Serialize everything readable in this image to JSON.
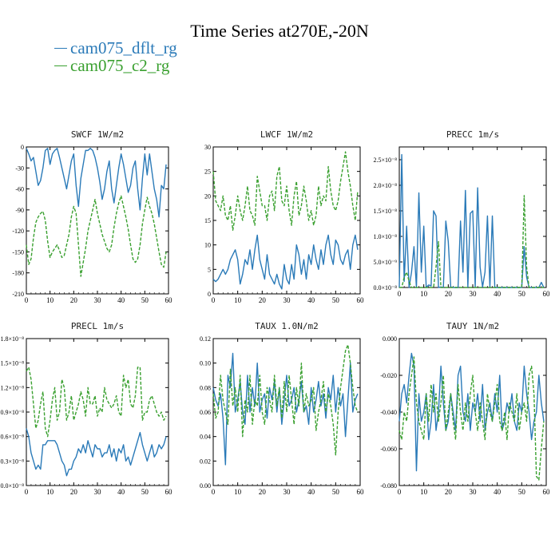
{
  "title": "Time Series at270E,-20N",
  "legend": [
    {
      "label": "cam075_dflt_rg",
      "color": "#2a7ab8"
    },
    {
      "label": "cam075_c2_rg",
      "color": "#3aa030"
    }
  ],
  "chart_data": [
    {
      "type": "line",
      "title": "SWCF   1W/m2",
      "xlim": [
        0,
        60
      ],
      "ylim": [
        -210,
        0
      ],
      "xticks": [
        0,
        10,
        20,
        30,
        40,
        50,
        60
      ],
      "yticks": [
        0,
        -30,
        -60,
        -90,
        -120,
        -150,
        -180,
        -210
      ],
      "ytick_labels": [
        "0",
        "-30",
        "-60",
        "-90",
        "-120",
        "-150",
        "-180",
        "-210"
      ],
      "series": [
        {
          "name": "cam075_dflt_rg",
          "values": [
            -2,
            -10,
            -20,
            -15,
            -35,
            -55,
            -48,
            -30,
            -5,
            -2,
            -25,
            -10,
            -5,
            -2,
            -15,
            -30,
            -45,
            -60,
            -40,
            -20,
            -10,
            -55,
            -85,
            -45,
            -25,
            -5,
            -5,
            -2,
            -5,
            -15,
            -30,
            -50,
            -75,
            -60,
            -35,
            -20,
            -60,
            -80,
            -55,
            -30,
            -10,
            -25,
            -45,
            -65,
            -55,
            -30,
            -20,
            -60,
            -90,
            -45,
            -10,
            -40,
            -10,
            -35,
            -60,
            -75,
            -100,
            -55,
            -60,
            -25
          ]
        },
        {
          "name": "cam075_c2_rg",
          "values": [
            -140,
            -168,
            -160,
            -130,
            -108,
            -100,
            -95,
            -92,
            -105,
            -135,
            -158,
            -150,
            -145,
            -140,
            -148,
            -158,
            -155,
            -140,
            -125,
            -100,
            -85,
            -95,
            -140,
            -185,
            -165,
            -145,
            -120,
            -105,
            -90,
            -75,
            -95,
            -110,
            -125,
            -135,
            -145,
            -150,
            -140,
            -115,
            -95,
            -80,
            -70,
            -85,
            -100,
            -118,
            -140,
            -160,
            -165,
            -160,
            -140,
            -110,
            -90,
            -72,
            -85,
            -95,
            -110,
            -130,
            -150,
            -168,
            -172,
            -150
          ]
        }
      ]
    },
    {
      "type": "line",
      "title": "LWCF   1W/m2",
      "xlim": [
        0,
        60
      ],
      "ylim": [
        0,
        30
      ],
      "xticks": [
        0,
        10,
        20,
        30,
        40,
        50,
        60
      ],
      "yticks": [
        0,
        5,
        10,
        15,
        20,
        25,
        30
      ],
      "ytick_labels": [
        "0",
        "5",
        "10",
        "15",
        "20",
        "25",
        "30"
      ],
      "series": [
        {
          "name": "cam075_dflt_rg",
          "values": [
            3,
            2.5,
            3,
            4,
            5,
            4,
            5,
            7,
            8,
            9,
            7,
            2,
            4,
            7,
            6,
            9,
            5,
            9,
            12,
            7,
            5,
            3,
            8,
            4,
            3,
            2,
            4,
            2,
            1,
            6,
            3,
            2,
            6,
            3,
            10,
            8,
            4,
            7,
            3,
            8,
            6,
            10,
            7,
            5,
            9,
            6,
            10,
            12,
            8,
            6,
            11,
            10,
            7,
            6,
            8,
            9,
            5,
            10,
            12,
            9
          ]
        },
        {
          "name": "cam075_c2_rg",
          "values": [
            25,
            19,
            18,
            17,
            20,
            16,
            15,
            18,
            13,
            16,
            20,
            17,
            15,
            18,
            22,
            17,
            16,
            14,
            24,
            21,
            18,
            18,
            15,
            20,
            21,
            17,
            24,
            26,
            19,
            18,
            22,
            17,
            14,
            20,
            23,
            16,
            18,
            22,
            19,
            15,
            17,
            14,
            16,
            22,
            18,
            20,
            19,
            26,
            21,
            18,
            17,
            19,
            23,
            26,
            29,
            25,
            22,
            18,
            15,
            21
          ]
        }
      ]
    },
    {
      "type": "line",
      "title": "PRECC   1m/s",
      "xlim": [
        0,
        60
      ],
      "ylim": [
        0,
        2.75e-08
      ],
      "xticks": [
        0,
        10,
        20,
        30,
        40,
        50,
        60
      ],
      "yticks": [
        0,
        5e-09,
        1e-08,
        1.5e-08,
        2e-08,
        2.5e-08
      ],
      "ytick_labels": [
        "0.0×10⁻⁸",
        "5.0×10⁻⁹",
        "1.0×10⁻⁸",
        "1.5×10⁻⁸",
        "2.0×10⁻⁸",
        "2.5×10⁻⁸"
      ],
      "series": [
        {
          "name": "cam075_dflt_rg",
          "values": [
            0,
            2.6e-08,
            1.2e-09,
            1.2e-08,
            0,
            3e-09,
            8e-09,
            0,
            1.85e-08,
            3e-09,
            1.2e-08,
            0,
            5e-10,
            3e-10,
            1.5e-08,
            1.4e-08,
            0,
            1e-10,
            0,
            1.3e-08,
            9e-09,
            1e-10,
            0,
            0,
            0,
            1.3e-08,
            3e-09,
            1.9e-08,
            1e-10,
            1.45e-08,
            1.5e-08,
            1e-10,
            1.95e-08,
            4e-09,
            1e-10,
            3e-09,
            1.4e-08,
            0,
            1.4e-08,
            0,
            0,
            0,
            0,
            0,
            0,
            0,
            0,
            0,
            0,
            0,
            0,
            8e-09,
            2e-09,
            0,
            0,
            0,
            0,
            0,
            1e-09,
            0
          ]
        },
        {
          "name": "cam075_c2_rg",
          "values": [
            0,
            0,
            2e-09,
            3e-09,
            1.2e-09,
            0,
            0,
            0,
            0,
            0,
            0,
            0,
            0,
            0,
            0,
            4e-09,
            9e-09,
            0,
            0,
            0,
            0,
            0,
            0,
            0,
            0,
            0,
            0,
            0,
            0,
            0,
            0,
            0,
            0,
            0,
            0,
            0,
            0,
            0,
            0,
            0,
            0,
            0,
            0,
            0,
            0,
            0,
            0,
            0,
            0,
            0,
            0,
            1.8e-08,
            4e-09,
            0,
            0,
            0,
            0,
            0,
            0,
            0
          ]
        }
      ]
    },
    {
      "type": "line",
      "title": "PRECL   1m/s",
      "xlim": [
        0,
        60
      ],
      "ylim": [
        0,
        1.8e-08
      ],
      "xticks": [
        0,
        10,
        20,
        30,
        40,
        50,
        60
      ],
      "yticks": [
        0,
        3e-09,
        6e-09,
        9e-09,
        1.2e-08,
        1.5e-08,
        1.8e-08
      ],
      "ytick_labels": [
        "0.0×10⁻⁸",
        "0.3×10⁻⁸",
        "0.6×10⁻⁸",
        "0.9×10⁻⁸",
        "1.2×10⁻⁸",
        "1.5×10⁻⁸",
        "1.8×10⁻⁸"
      ],
      "series": [
        {
          "name": "cam075_dflt_rg",
          "values": [
            7e-09,
            6e-09,
            4e-09,
            3e-09,
            2e-09,
            2.5e-09,
            2e-09,
            5e-09,
            5e-09,
            5.5e-09,
            5.5e-09,
            5.5e-09,
            5.5e-09,
            5e-09,
            4e-09,
            3e-09,
            2.5e-09,
            1.2e-09,
            2e-09,
            2e-09,
            3e-09,
            3.5e-09,
            4.5e-09,
            4e-09,
            5e-09,
            4e-09,
            5.5e-09,
            4.5e-09,
            3.5e-09,
            5e-09,
            4.5e-09,
            4.5e-09,
            3.5e-09,
            4e-09,
            4e-09,
            5e-09,
            3.5e-09,
            4.5e-09,
            3e-09,
            4.5e-09,
            4e-09,
            5e-09,
            3e-09,
            3.5e-09,
            2.5e-09,
            3.5e-09,
            4.5e-09,
            5.5e-09,
            6.5e-09,
            5e-09,
            4e-09,
            3e-09,
            4e-09,
            5e-09,
            3.5e-09,
            4e-09,
            5e-09,
            4.5e-09,
            5e-09,
            6e-09
          ]
        },
        {
          "name": "cam075_c2_rg",
          "values": [
            1.4e-08,
            1.45e-08,
            1.3e-08,
            1e-08,
            7e-09,
            8e-09,
            1e-08,
            1.15e-08,
            7e-09,
            6e-09,
            8e-09,
            1.05e-08,
            1.2e-08,
            8e-09,
            9e-09,
            1.3e-08,
            1.2e-08,
            8e-09,
            9e-09,
            1.1e-08,
            8e-09,
            9e-09,
            1e-08,
            1.15e-08,
            1.05e-08,
            8.5e-09,
            1.2e-08,
            1e-08,
            1e-08,
            1.1e-08,
            8.5e-09,
            9.5e-09,
            9e-09,
            1.2e-08,
            1.05e-08,
            1e-08,
            9.5e-09,
            1e-08,
            1.1e-08,
            9e-09,
            8.5e-09,
            1.35e-08,
            1.2e-08,
            1.3e-08,
            1e-08,
            9.5e-09,
            1.1e-08,
            1.45e-08,
            1.45e-08,
            8e-09,
            9e-09,
            9e-09,
            1.05e-08,
            1.1e-08,
            1e-08,
            9e-09,
            8.5e-09,
            9e-09,
            8e-09,
            8.5e-09
          ]
        }
      ]
    },
    {
      "type": "line",
      "title": "TAUX   1.0N/m2",
      "xlim": [
        0,
        60
      ],
      "ylim": [
        0,
        0.12
      ],
      "xticks": [
        0,
        10,
        20,
        30,
        40,
        50,
        60
      ],
      "yticks": [
        0,
        0.02,
        0.04,
        0.06,
        0.08,
        0.1,
        0.12
      ],
      "ytick_labels": [
        "0.00",
        "0.02",
        "0.04",
        "0.06",
        "0.08",
        "0.10",
        "0.12"
      ],
      "series": [
        {
          "name": "cam075_dflt_rg",
          "values": [
            0.08,
            0.07,
            0.065,
            0.075,
            0.055,
            0.017,
            0.09,
            0.08,
            0.108,
            0.06,
            0.07,
            0.085,
            0.06,
            0.05,
            0.09,
            0.06,
            0.08,
            0.065,
            0.1,
            0.06,
            0.07,
            0.075,
            0.055,
            0.08,
            0.07,
            0.085,
            0.06,
            0.08,
            0.05,
            0.07,
            0.09,
            0.065,
            0.07,
            0.08,
            0.06,
            0.07,
            0.085,
            0.06,
            0.065,
            0.05,
            0.08,
            0.06,
            0.07,
            0.085,
            0.065,
            0.075,
            0.055,
            0.08,
            0.07,
            0.09,
            0.06,
            0.08,
            0.065,
            0.075,
            0.04,
            0.07,
            0.1,
            0.06,
            0.07,
            0.075
          ]
        },
        {
          "name": "cam075_c2_rg",
          "values": [
            0.075,
            0.055,
            0.06,
            0.09,
            0.07,
            0.06,
            0.05,
            0.095,
            0.065,
            0.08,
            0.06,
            0.09,
            0.04,
            0.07,
            0.06,
            0.09,
            0.05,
            0.07,
            0.065,
            0.09,
            0.06,
            0.05,
            0.08,
            0.07,
            0.06,
            0.09,
            0.065,
            0.08,
            0.055,
            0.085,
            0.06,
            0.09,
            0.07,
            0.05,
            0.08,
            0.065,
            0.1,
            0.06,
            0.075,
            0.065,
            0.07,
            0.08,
            0.045,
            0.06,
            0.07,
            0.085,
            0.06,
            0.075,
            0.065,
            0.05,
            0.025,
            0.06,
            0.08,
            0.095,
            0.11,
            0.115,
            0.1,
            0.08,
            0.065,
            0.06
          ]
        }
      ]
    },
    {
      "type": "line",
      "title": "TAUY   1N/m2",
      "xlim": [
        0,
        60
      ],
      "ylim": [
        -0.08,
        0
      ],
      "xticks": [
        0,
        10,
        20,
        30,
        40,
        50,
        60
      ],
      "yticks": [
        0,
        -0.02,
        -0.04,
        -0.06,
        -0.08
      ],
      "ytick_labels": [
        "0.000",
        "-0.020",
        "-0.040",
        "-0.060",
        "-0.080"
      ],
      "series": [
        {
          "name": "cam075_dflt_rg",
          "values": [
            -0.045,
            -0.03,
            -0.025,
            -0.035,
            -0.02,
            -0.008,
            -0.015,
            -0.072,
            -0.03,
            -0.045,
            -0.04,
            -0.03,
            -0.055,
            -0.045,
            -0.025,
            -0.05,
            -0.04,
            -0.015,
            -0.035,
            -0.05,
            -0.045,
            -0.03,
            -0.04,
            -0.05,
            -0.02,
            -0.015,
            -0.04,
            -0.045,
            -0.03,
            -0.05,
            -0.035,
            -0.04,
            -0.03,
            -0.045,
            -0.025,
            -0.05,
            -0.04,
            -0.035,
            -0.045,
            -0.03,
            -0.04,
            -0.02,
            -0.05,
            -0.045,
            -0.035,
            -0.04,
            -0.03,
            -0.045,
            -0.05,
            -0.035,
            -0.04,
            -0.015,
            -0.03,
            -0.04,
            -0.055,
            -0.045,
            -0.04,
            -0.02,
            -0.035,
            -0.045
          ]
        },
        {
          "name": "cam075_c2_rg",
          "values": [
            -0.05,
            -0.055,
            -0.04,
            -0.045,
            -0.03,
            -0.02,
            -0.01,
            -0.035,
            -0.045,
            -0.05,
            -0.055,
            -0.03,
            -0.045,
            -0.025,
            -0.04,
            -0.03,
            -0.045,
            -0.035,
            -0.02,
            -0.05,
            -0.04,
            -0.03,
            -0.045,
            -0.055,
            -0.025,
            -0.04,
            -0.05,
            -0.035,
            -0.045,
            -0.03,
            -0.02,
            -0.04,
            -0.05,
            -0.035,
            -0.045,
            -0.055,
            -0.03,
            -0.04,
            -0.045,
            -0.035,
            -0.025,
            -0.045,
            -0.05,
            -0.04,
            -0.055,
            -0.035,
            -0.04,
            -0.045,
            -0.03,
            -0.05,
            -0.04,
            -0.035,
            -0.045,
            -0.02,
            -0.015,
            -0.03,
            -0.075,
            -0.077,
            -0.06,
            -0.045
          ]
        }
      ]
    }
  ]
}
